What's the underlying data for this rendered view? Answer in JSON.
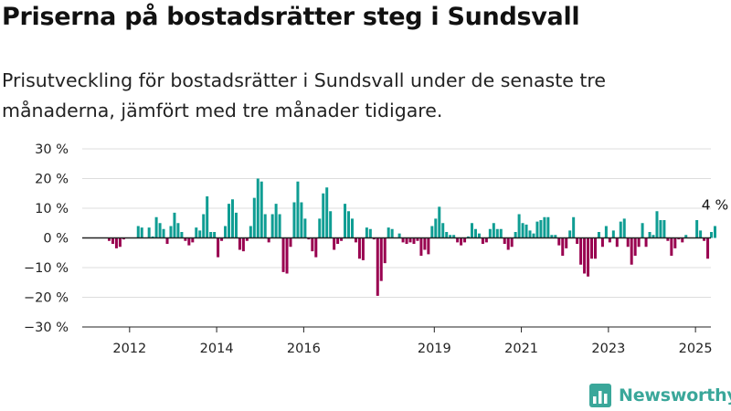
{
  "title": "Priserna på bostadsrätter steg i Sundsvall",
  "subtitle": "Prisutveckling för bostadsrätter i Sundsvall under de senaste tre månaderna, jämfört med tre månader tidigare.",
  "brand": {
    "name": "Newsworthy",
    "logo_icon": "bar-chart-logo-icon",
    "color": "#3aa79a"
  },
  "colors": {
    "positive": "#0f9d93",
    "negative": "#990050",
    "grid": "#dddddd",
    "baseline": "#222222"
  },
  "chart_data": {
    "type": "bar",
    "title": "",
    "xlabel": "",
    "ylabel": "",
    "ylim": [
      -30,
      30
    ],
    "y_ticks": [
      30,
      20,
      10,
      0,
      -10,
      -20,
      -30
    ],
    "y_tick_labels": [
      "30 %",
      "20 %",
      "10 %",
      "0 %",
      "−10 %",
      "−20 %",
      "−30 %"
    ],
    "x_ticks": [
      2012,
      2014,
      2016,
      2019,
      2021,
      2023,
      2025
    ],
    "x_start": "2011-07",
    "grid": true,
    "end_label": "4 %",
    "values": [
      -1,
      -2,
      -3.5,
      -3,
      -0.5,
      0,
      0,
      0,
      4,
      3.5,
      0,
      3.5,
      0.5,
      7,
      5,
      3,
      -2,
      4,
      8.5,
      5,
      2,
      -1,
      -2.5,
      -1.5,
      3.5,
      2.5,
      8,
      14,
      2,
      2,
      -6.5,
      -1,
      4,
      11.5,
      13,
      8.5,
      -4,
      -4.5,
      -1,
      4,
      13.5,
      20,
      19,
      8,
      -1.5,
      8,
      11.5,
      8,
      -11.5,
      -12,
      -3,
      12,
      19,
      12,
      6.5,
      -0.5,
      -4.5,
      -6.5,
      6.5,
      15,
      17,
      9,
      -4,
      -2,
      -1,
      11.5,
      9,
      6.5,
      -1.5,
      -7,
      -7.5,
      3.5,
      3,
      -0.5,
      -19.5,
      -14.5,
      -8.5,
      3.5,
      3,
      0,
      1.5,
      -1.5,
      -2,
      -1.5,
      -2,
      -1,
      -6,
      -4,
      -5.5,
      4,
      6.5,
      10.5,
      5,
      2,
      1,
      1,
      -1.5,
      -2.5,
      -1.5,
      0.5,
      5,
      3,
      1.5,
      -2,
      -1.5,
      3,
      5,
      3,
      3,
      -2,
      -4,
      -3,
      2,
      8,
      5,
      4.5,
      2.5,
      1.5,
      5.5,
      6,
      7,
      7,
      1,
      1,
      -2.5,
      -6,
      -3.5,
      2.5,
      7,
      -2,
      -9,
      -12,
      -13,
      -7,
      -7,
      2,
      -3,
      4,
      -1.5,
      2.5,
      -3,
      5.5,
      6.5,
      -3,
      -9,
      -6,
      -3,
      5,
      -3,
      2,
      1,
      9,
      6,
      6,
      -1,
      -6,
      -3.5,
      -0.5,
      -1.5,
      1,
      0,
      0,
      6,
      2.5,
      -1,
      -7,
      2,
      4
    ]
  }
}
